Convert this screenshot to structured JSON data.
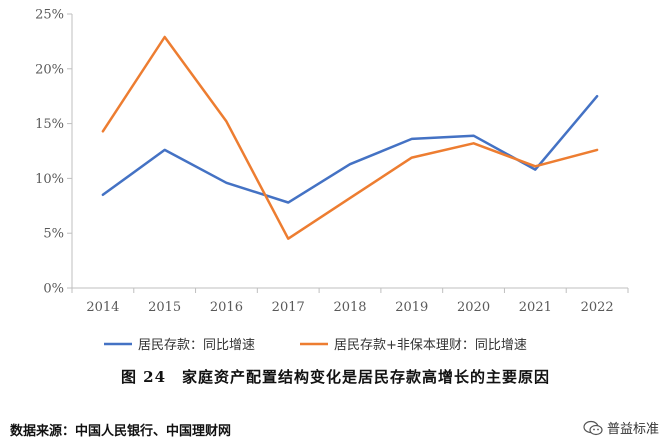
{
  "chart_data": {
    "type": "line",
    "categories": [
      "2014",
      "2015",
      "2016",
      "2017",
      "2018",
      "2019",
      "2020",
      "2021",
      "2022"
    ],
    "series": [
      {
        "name": "居民存款：同比增速",
        "color": "#4472C4",
        "values": [
          8.5,
          12.6,
          9.6,
          7.8,
          11.3,
          13.6,
          13.9,
          10.8,
          17.5
        ]
      },
      {
        "name": "居民存款+非保本理财：同比增速",
        "color": "#ED7D31",
        "values": [
          14.3,
          22.9,
          15.2,
          4.5,
          8.2,
          11.9,
          13.2,
          11.1,
          12.6
        ]
      }
    ],
    "ylim": [
      0,
      25
    ],
    "yticks": [
      "0%",
      "5%",
      "10%",
      "15%",
      "20%",
      "25%"
    ],
    "ytick_values": [
      0,
      5,
      10,
      15,
      20,
      25
    ],
    "grid": false,
    "legend": "bottom"
  },
  "caption": "图 24　家庭资产配置结构变化是居民存款高增长的主要原因",
  "source": "数据来源：中国人民银行、中国理财网",
  "watermark": {
    "text": "普益标准",
    "icon": "wechat-icon"
  }
}
